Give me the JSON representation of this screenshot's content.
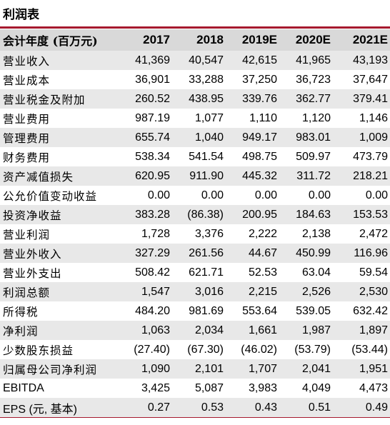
{
  "title": "利润表",
  "header": {
    "label": "会计年度 (百万元)",
    "years": [
      "2017",
      "2018",
      "2019E",
      "2020E",
      "2021E"
    ]
  },
  "rows": [
    {
      "label": "营业收入",
      "values": [
        "41,369",
        "40,547",
        "42,615",
        "41,965",
        "43,193"
      ]
    },
    {
      "label": "营业成本",
      "values": [
        "36,901",
        "33,288",
        "37,250",
        "36,723",
        "37,647"
      ]
    },
    {
      "label": "营业税金及附加",
      "values": [
        "260.52",
        "438.95",
        "339.76",
        "362.77",
        "379.41"
      ]
    },
    {
      "label": "营业费用",
      "values": [
        "987.19",
        "1,077",
        "1,110",
        "1,120",
        "1,146"
      ]
    },
    {
      "label": "管理费用",
      "values": [
        "655.74",
        "1,040",
        "949.17",
        "983.01",
        "1,009"
      ]
    },
    {
      "label": "财务费用",
      "values": [
        "538.34",
        "541.54",
        "498.75",
        "509.97",
        "473.79"
      ]
    },
    {
      "label": "资产减值损失",
      "values": [
        "620.95",
        "911.90",
        "445.32",
        "311.72",
        "218.21"
      ]
    },
    {
      "label": "公允价值变动收益",
      "values": [
        "0.00",
        "0.00",
        "0.00",
        "0.00",
        "0.00"
      ]
    },
    {
      "label": "投资净收益",
      "values": [
        "383.28",
        "(86.38)",
        "200.95",
        "184.63",
        "153.53"
      ]
    },
    {
      "label": "营业利润",
      "values": [
        "1,728",
        "3,376",
        "2,222",
        "2,138",
        "2,472"
      ]
    },
    {
      "label": "营业外收入",
      "values": [
        "327.29",
        "261.56",
        "44.67",
        "450.99",
        "116.96"
      ]
    },
    {
      "label": "营业外支出",
      "values": [
        "508.42",
        "621.71",
        "52.53",
        "63.04",
        "59.54"
      ]
    },
    {
      "label": "利润总额",
      "values": [
        "1,547",
        "3,016",
        "2,215",
        "2,526",
        "2,530"
      ]
    },
    {
      "label": "所得税",
      "values": [
        "484.20",
        "981.69",
        "553.64",
        "539.05",
        "632.42"
      ]
    },
    {
      "label": "净利润",
      "values": [
        "1,063",
        "2,034",
        "1,661",
        "1,987",
        "1,897"
      ]
    },
    {
      "label": "少数股东损益",
      "values": [
        "(27.40)",
        "(67.30)",
        "(46.02)",
        "(53.79)",
        "(53.44)"
      ]
    },
    {
      "label": "归属母公司净利润",
      "values": [
        "1,090",
        "2,101",
        "1,707",
        "2,041",
        "1,951"
      ]
    },
    {
      "label": "EBITDA",
      "values": [
        "3,425",
        "5,087",
        "3,983",
        "4,049",
        "4,473"
      ]
    },
    {
      "label": "EPS (元, 基本)",
      "values": [
        "0.27",
        "0.53",
        "0.43",
        "0.51",
        "0.49"
      ]
    }
  ]
}
